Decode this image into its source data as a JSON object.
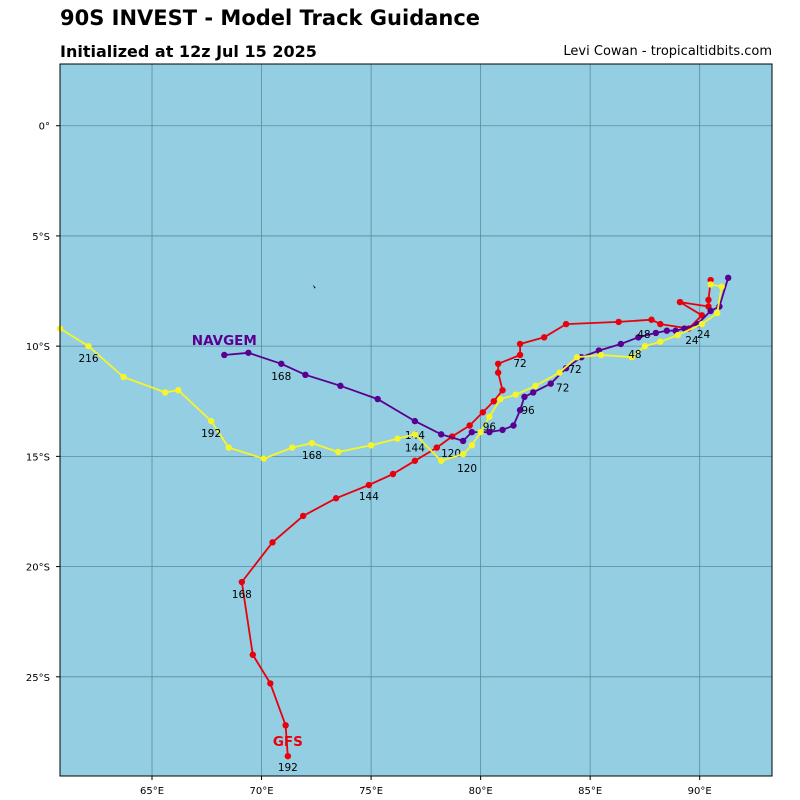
{
  "header": {
    "title": "90S INVEST - Model Track Guidance",
    "subtitle": "Initialized at 12z Jul 15 2025",
    "credit": "Levi Cowan - tropicaltidbits.com"
  },
  "chart_data": {
    "type": "line",
    "title": "90S INVEST - Model Track Guidance",
    "subtitle": "Initialized at 12z Jul 15 2025",
    "xlim": [
      60.8,
      93.3
    ],
    "ylim": [
      -29.5,
      2.8
    ],
    "x_ticks": [
      {
        "value": 65,
        "label": "65°E"
      },
      {
        "value": 70,
        "label": "70°E"
      },
      {
        "value": 75,
        "label": "75°E"
      },
      {
        "value": 80,
        "label": "80°E"
      },
      {
        "value": 85,
        "label": "85°E"
      },
      {
        "value": 90,
        "label": "90°E"
      }
    ],
    "y_ticks": [
      {
        "value": 0,
        "label": "0°"
      },
      {
        "value": -5,
        "label": "5°S"
      },
      {
        "value": -10,
        "label": "10°S"
      },
      {
        "value": -15,
        "label": "15°S"
      },
      {
        "value": -20,
        "label": "20°S"
      },
      {
        "value": -25,
        "label": "25°S"
      }
    ],
    "grid": true,
    "background_color": "#94cee3",
    "grid_color": "#5c8a9a",
    "land_marks": [
      [
        72.4,
        -7.3
      ]
    ],
    "series": [
      {
        "name": "GFS",
        "color": "#e8000b",
        "line_width": 1.8,
        "points": [
          [
            90.5,
            -7.0
          ],
          [
            90.4,
            -7.9
          ],
          [
            90.4,
            -8.2
          ],
          [
            89.1,
            -8.0
          ],
          [
            90.1,
            -8.6
          ],
          [
            89.5,
            -9.2
          ],
          [
            88.2,
            -9.0
          ],
          [
            87.8,
            -8.8
          ],
          [
            86.3,
            -8.9
          ],
          [
            83.9,
            -9.0
          ],
          [
            82.9,
            -9.6
          ],
          [
            81.8,
            -9.9
          ],
          [
            81.8,
            -10.4
          ],
          [
            80.8,
            -10.8
          ],
          [
            80.8,
            -11.2
          ],
          [
            81.0,
            -12.0
          ],
          [
            80.6,
            -12.5
          ],
          [
            80.1,
            -13.0
          ],
          [
            79.5,
            -13.6
          ],
          [
            78.7,
            -14.1
          ],
          [
            78.0,
            -14.6
          ],
          [
            77.0,
            -15.2
          ],
          [
            76.0,
            -15.8
          ],
          [
            74.9,
            -16.3
          ],
          [
            73.4,
            -16.9
          ],
          [
            71.9,
            -17.7
          ],
          [
            70.5,
            -18.9
          ],
          [
            69.1,
            -20.7
          ],
          [
            69.6,
            -24.0
          ],
          [
            70.4,
            -25.3
          ],
          [
            71.1,
            -27.2
          ],
          [
            71.2,
            -28.6
          ]
        ],
        "labels": [
          {
            "text": "72",
            "at": [
              81.8,
              -10.4
            ],
            "dx": 0,
            "dy": 12
          },
          {
            "text": "144",
            "at": [
              74.9,
              -16.3
            ],
            "dx": 0,
            "dy": 15
          },
          {
            "text": "168",
            "at": [
              69.1,
              -20.7
            ],
            "dx": 0,
            "dy": 16
          },
          {
            "text": "192",
            "at": [
              71.2,
              -28.6
            ],
            "dx": 0,
            "dy": 15
          }
        ],
        "model_label": {
          "text": "GFS",
          "at": [
            71.2,
            -28.6
          ],
          "dx": 0,
          "dy": -10
        }
      },
      {
        "name": "NAVGEM",
        "color": "#5a0091",
        "line_width": 1.8,
        "points": [
          [
            91.3,
            -6.9
          ],
          [
            90.9,
            -8.2
          ],
          [
            90.5,
            -8.4
          ],
          [
            89.9,
            -9.0
          ],
          [
            89.3,
            -9.2
          ],
          [
            88.9,
            -9.3
          ],
          [
            88.5,
            -9.3
          ],
          [
            88.0,
            -9.4
          ],
          [
            87.2,
            -9.6
          ],
          [
            86.4,
            -9.9
          ],
          [
            85.4,
            -10.2
          ],
          [
            84.6,
            -10.5
          ],
          [
            83.9,
            -11.0
          ],
          [
            83.2,
            -11.7
          ],
          [
            82.4,
            -12.1
          ],
          [
            82.0,
            -12.3
          ],
          [
            81.8,
            -12.9
          ],
          [
            81.5,
            -13.6
          ],
          [
            81.0,
            -13.8
          ],
          [
            80.4,
            -13.9
          ],
          [
            79.6,
            -13.9
          ],
          [
            79.2,
            -14.3
          ],
          [
            78.2,
            -14.0
          ],
          [
            77.0,
            -13.4
          ],
          [
            75.3,
            -12.4
          ],
          [
            73.6,
            -11.8
          ],
          [
            72.0,
            -11.3
          ],
          [
            70.9,
            -10.8
          ],
          [
            69.4,
            -10.3
          ],
          [
            68.3,
            -10.4
          ]
        ],
        "labels": [
          {
            "text": "24",
            "at": [
              89.9,
              -9.0
            ],
            "dx": 6,
            "dy": 14
          },
          {
            "text": "48",
            "at": [
              88.0,
              -9.4
            ],
            "dx": -12,
            "dy": 5
          },
          {
            "text": "72",
            "at": [
              83.2,
              -11.7
            ],
            "dx": 12,
            "dy": 8
          },
          {
            "text": "96",
            "at": [
              81.8,
              -12.9
            ],
            "dx": 8,
            "dy": 4
          },
          {
            "text": "120",
            "at": [
              79.2,
              -14.3
            ],
            "dx": -12,
            "dy": 16
          },
          {
            "text": "144",
            "at": [
              77.0,
              -13.4
            ],
            "dx": 0,
            "dy": 18
          },
          {
            "text": "168",
            "at": [
              70.9,
              -10.8
            ],
            "dx": 0,
            "dy": 16
          }
        ],
        "model_label": {
          "text": "NAVGEM",
          "at": [
            68.3,
            -10.4
          ],
          "dx": 0,
          "dy": -10
        }
      },
      {
        "name": "",
        "color": "#f5f52a",
        "line_width": 1.8,
        "points": [
          [
            90.5,
            -7.2
          ],
          [
            91.0,
            -7.3
          ],
          [
            90.8,
            -8.5
          ],
          [
            90.1,
            -9.0
          ],
          [
            89.0,
            -9.5
          ],
          [
            88.2,
            -9.8
          ],
          [
            87.5,
            -10.0
          ],
          [
            86.9,
            -10.5
          ],
          [
            85.5,
            -10.4
          ],
          [
            84.4,
            -10.5
          ],
          [
            83.6,
            -11.2
          ],
          [
            82.5,
            -11.8
          ],
          [
            81.6,
            -12.2
          ],
          [
            80.9,
            -12.4
          ],
          [
            80.4,
            -13.2
          ],
          [
            80.0,
            -13.9
          ],
          [
            79.6,
            -14.5
          ],
          [
            79.2,
            -14.9
          ],
          [
            78.2,
            -15.2
          ],
          [
            77.0,
            -14.0
          ],
          [
            76.2,
            -14.2
          ],
          [
            75.0,
            -14.5
          ],
          [
            73.5,
            -14.8
          ],
          [
            72.3,
            -14.4
          ],
          [
            71.4,
            -14.6
          ],
          [
            70.1,
            -15.1
          ],
          [
            68.5,
            -14.6
          ],
          [
            67.7,
            -13.4
          ],
          [
            66.2,
            -12.0
          ],
          [
            65.6,
            -12.1
          ],
          [
            63.7,
            -11.4
          ],
          [
            62.1,
            -10.0
          ],
          [
            60.8,
            -9.2
          ]
        ],
        "labels": [
          {
            "text": "24",
            "at": [
              90.1,
              -9.0
            ],
            "dx": -10,
            "dy": 20
          },
          {
            "text": "48",
            "at": [
              87.5,
              -10.0
            ],
            "dx": -10,
            "dy": 12
          },
          {
            "text": "72",
            "at": [
              84.4,
              -10.5
            ],
            "dx": -2,
            "dy": 16
          },
          {
            "text": "96",
            "at": [
              80.4,
              -13.2
            ],
            "dx": 0,
            "dy": 14
          },
          {
            "text": "120",
            "at": [
              79.2,
              -14.9
            ],
            "dx": 4,
            "dy": 18
          },
          {
            "text": "144",
            "at": [
              77.0,
              -14.0
            ],
            "dx": 0,
            "dy": 17
          },
          {
            "text": "168",
            "at": [
              72.3,
              -14.4
            ],
            "dx": 0,
            "dy": 16
          },
          {
            "text": "192",
            "at": [
              67.7,
              -13.4
            ],
            "dx": 0,
            "dy": 16
          },
          {
            "text": "216",
            "at": [
              62.1,
              -10.0
            ],
            "dx": 0,
            "dy": 16
          }
        ]
      }
    ]
  }
}
